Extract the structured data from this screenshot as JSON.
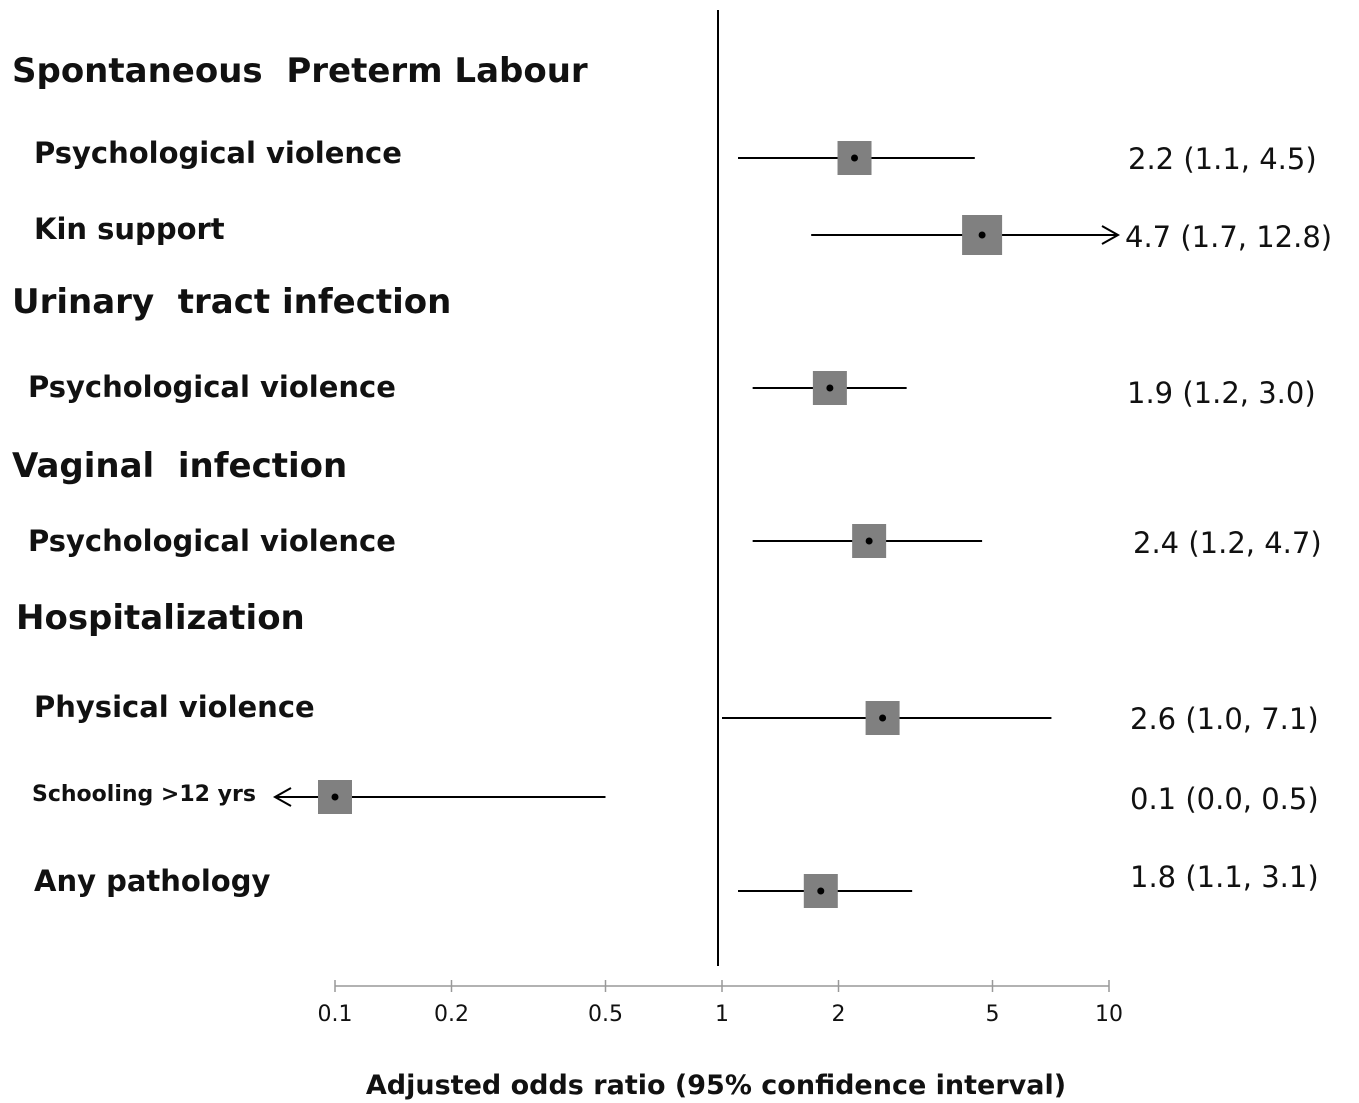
{
  "chart_data": {
    "type": "forest",
    "xscale": "log",
    "xlim": [
      0.1,
      10
    ],
    "reference_line": 1,
    "xticks": [
      0.1,
      0.2,
      0.5,
      1,
      2,
      5,
      10
    ],
    "xtick_labels": [
      "0.1",
      "0.2",
      "0.5",
      "1",
      "2",
      "5",
      "10"
    ],
    "xlabel": "Adjusted odds ratio (95% confidence interval)",
    "groups": [
      {
        "label": "Spontaneous  Preterm Labour"
      },
      {
        "label": "Urinary  tract infection"
      },
      {
        "label": "Vaginal  infection"
      },
      {
        "label": "Hospitalization"
      }
    ],
    "rows": [
      {
        "group": "Spontaneous  Preterm Labour",
        "label": "Psychological violence",
        "or": 2.2,
        "lo": 1.1,
        "hi": 4.5,
        "text": "2.2 (1.1, 4.5)"
      },
      {
        "group": "Spontaneous  Preterm Labour",
        "label": "Kin support",
        "or": 4.7,
        "lo": 1.7,
        "hi": 12.8,
        "text": "4.7 (1.7, 12.8)",
        "arrow": "right"
      },
      {
        "group": "Urinary  tract infection",
        "label": "Psychological violence",
        "or": 1.9,
        "lo": 1.2,
        "hi": 3.0,
        "text": "1.9 (1.2, 3.0)"
      },
      {
        "group": "Vaginal  infection",
        "label": "Psychological violence",
        "or": 2.4,
        "lo": 1.2,
        "hi": 4.7,
        "text": "2.4 (1.2, 4.7)"
      },
      {
        "group": "Hospitalization",
        "label": "Physical violence",
        "or": 2.6,
        "lo": 1.0,
        "hi": 7.1,
        "text": "2.6 (1.0, 7.1)"
      },
      {
        "group": "Hospitalization",
        "label": "Schooling >12 yrs",
        "or": 0.1,
        "lo": 0.0,
        "hi": 0.5,
        "text": "0.1 (0.0, 0.5)",
        "arrow": "left"
      },
      {
        "group": "Hospitalization",
        "label": "Any pathology",
        "or": 1.8,
        "lo": 1.1,
        "hi": 3.1,
        "text": "1.8 (1.1, 3.1)"
      }
    ],
    "colors": {
      "box": "#808080",
      "line": "#000000",
      "point": "#000000"
    }
  }
}
